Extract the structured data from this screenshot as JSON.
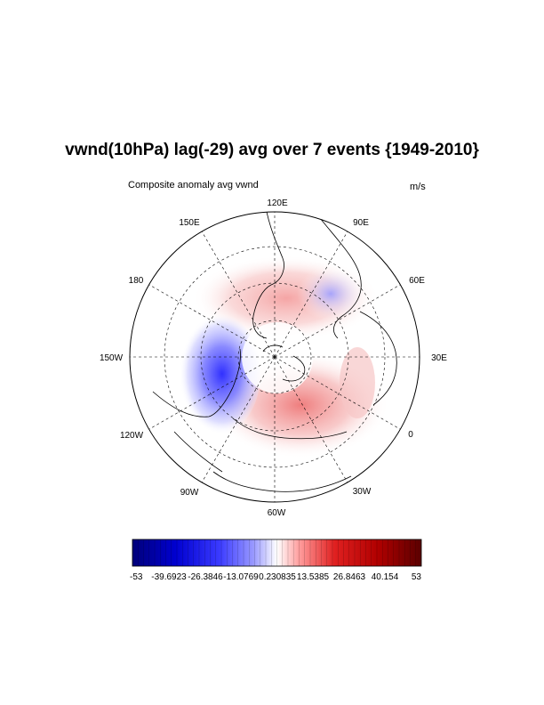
{
  "title": "vwnd(10hPa) lag(-29) avg over 7 events {1949-2010}",
  "left_label": "Composite anomaly avg vwnd",
  "right_label": "m/s",
  "map": {
    "projection": "north polar stereographic",
    "longitude_labels": [
      "120E",
      "90E",
      "60E",
      "30E",
      "0",
      "30W",
      "60W",
      "90W",
      "120W",
      "150W",
      "180",
      "150E"
    ],
    "grid": "dashed lat/lon lines every 30 degrees",
    "colors": {
      "positive": "#e03030",
      "negative": "#1a1aff"
    }
  },
  "colorbar": {
    "min": -53,
    "max": 53,
    "labels": [
      "-53",
      "-39.6923",
      "-26.3846",
      "-13.0769",
      "0.230835",
      "13.5385",
      "26.8463",
      "40.154",
      "53"
    ],
    "colors": [
      "#00007a",
      "#0000d0",
      "#3a3aff",
      "#9a9aff",
      "#ffffff",
      "#ff9a9a",
      "#e02020",
      "#b00000",
      "#5a0000"
    ]
  }
}
